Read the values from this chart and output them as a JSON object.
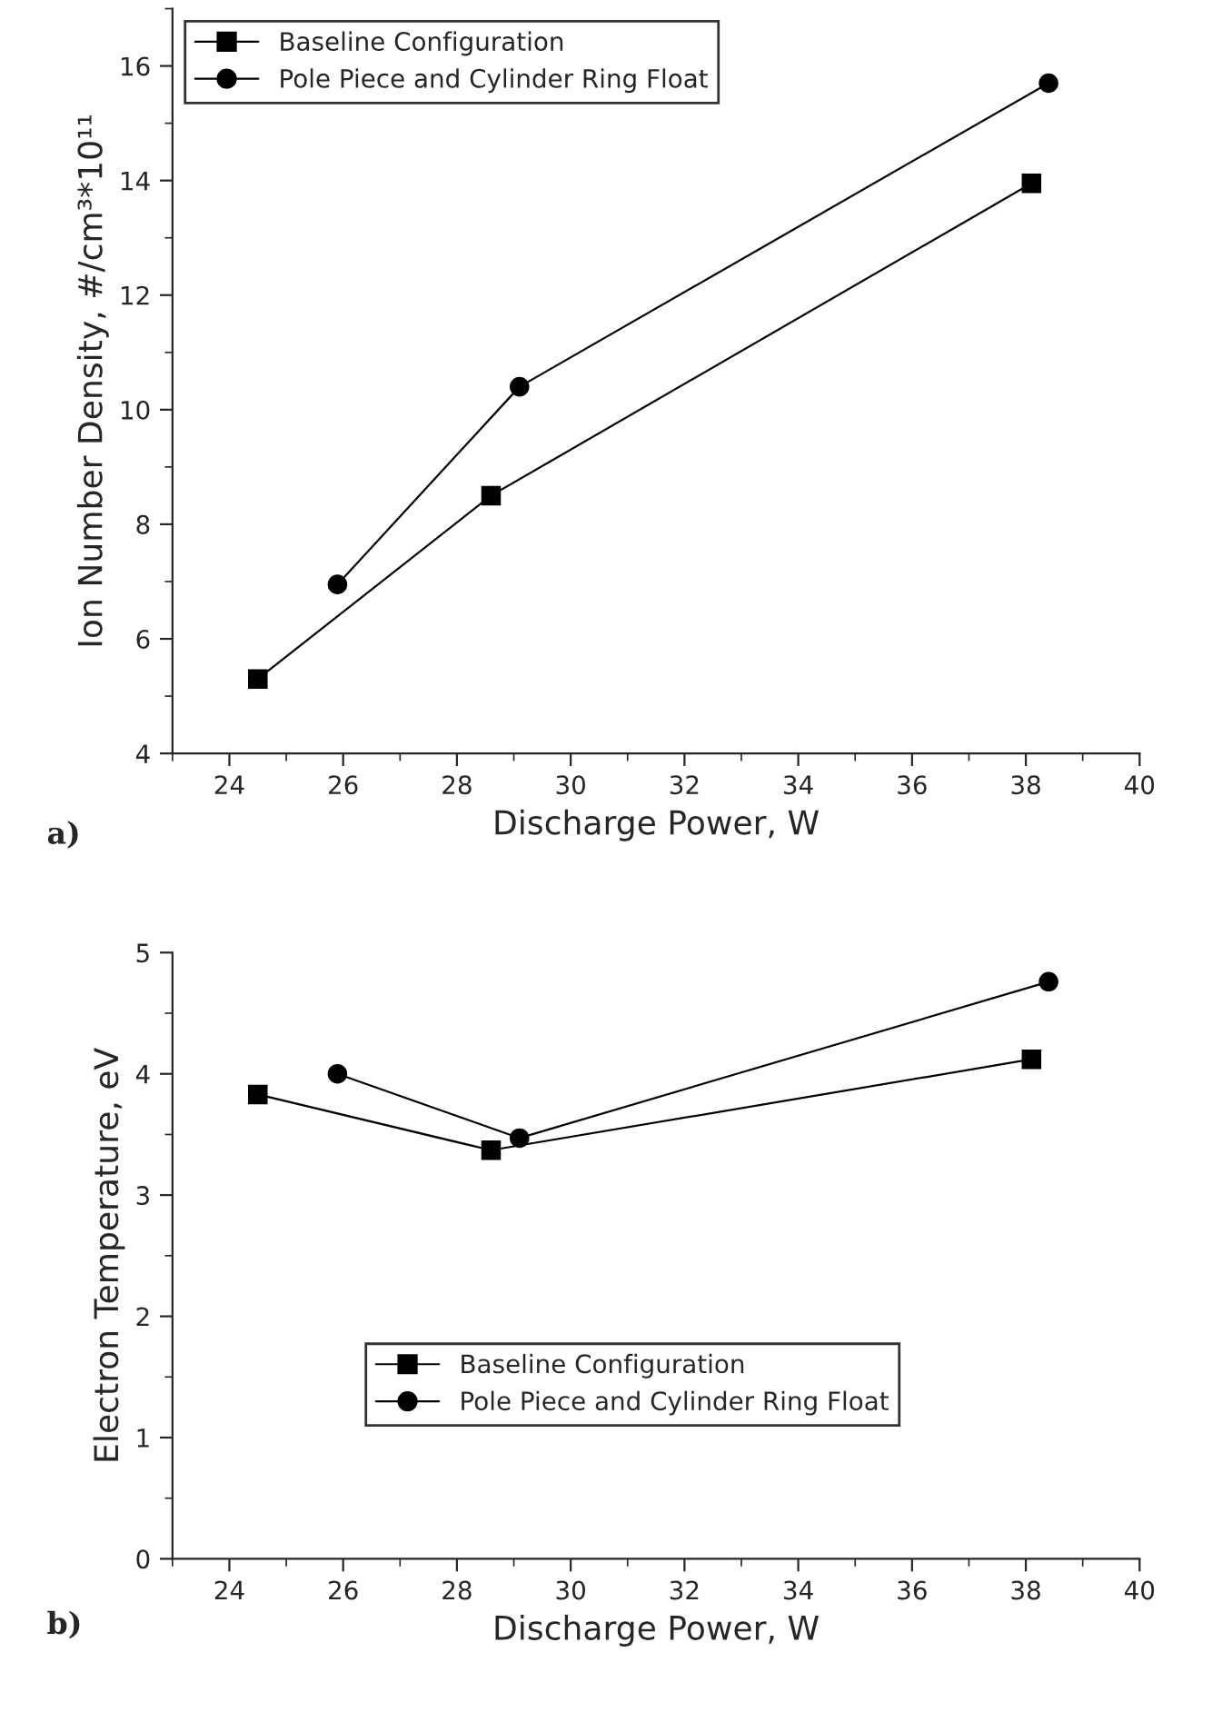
{
  "chart_data": [
    {
      "type": "line",
      "xlabel": "Discharge Power, W",
      "ylabel": "Ion Number Density, #/cm³*10¹¹",
      "annotations": [
        "a)"
      ],
      "xlim": [
        23,
        40
      ],
      "xticks": [
        24,
        26,
        28,
        30,
        32,
        34,
        36,
        38,
        40
      ],
      "ylim": [
        4,
        17
      ],
      "yticks": [
        4,
        6,
        8,
        10,
        12,
        14,
        16
      ],
      "grid": false,
      "legend": "top left",
      "line_style": "solid",
      "series": [
        {
          "name": "Baseline Configuration",
          "color": "#000000",
          "marker": "square",
          "x": [
            24.5,
            28.6,
            38.1
          ],
          "values": [
            5.3,
            8.5,
            13.95
          ]
        },
        {
          "name": "Pole Piece and Cylinder Ring Float",
          "color": "#000000",
          "marker": "circle",
          "x": [
            25.9,
            29.1,
            38.4
          ],
          "values": [
            6.95,
            10.4,
            15.7
          ]
        }
      ]
    },
    {
      "type": "line",
      "xlabel": "Discharge Power, W",
      "ylabel": "Electron Temperature, eV",
      "annotations": [
        "b)"
      ],
      "xlim": [
        23,
        40
      ],
      "xticks": [
        24,
        26,
        28,
        30,
        32,
        34,
        36,
        38,
        40
      ],
      "ylim": [
        0,
        5
      ],
      "yticks": [
        0,
        1,
        2,
        3,
        4,
        5
      ],
      "grid": false,
      "legend": "center",
      "line_style": "solid",
      "series": [
        {
          "name": "Baseline Configuration",
          "color": "#000000",
          "marker": "square",
          "x": [
            24.5,
            28.6,
            38.1
          ],
          "values": [
            3.83,
            3.37,
            4.12
          ]
        },
        {
          "name": "Pole Piece and Cylinder Ring Float",
          "color": "#000000",
          "marker": "circle",
          "x": [
            25.9,
            29.1,
            38.4
          ],
          "values": [
            4.0,
            3.47,
            4.76
          ]
        }
      ]
    }
  ]
}
